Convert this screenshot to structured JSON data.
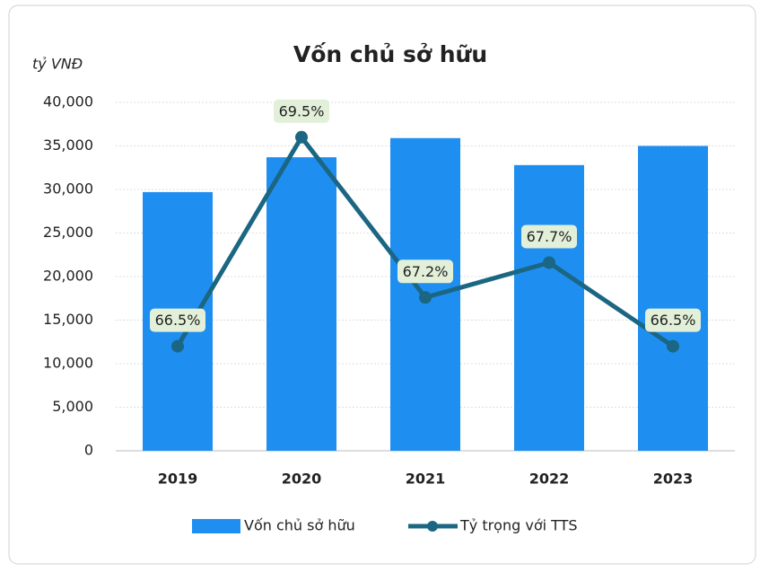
{
  "chart_data": {
    "type": "bar-line",
    "title": "Vốn chủ sở hữu",
    "y_axis_label": "tỷ VNĐ",
    "categories": [
      "2019",
      "2020",
      "2021",
      "2022",
      "2023"
    ],
    "series": [
      {
        "name": "Vốn chủ sở hữu",
        "type": "bar",
        "color": "#1f8ef1",
        "values": [
          29700,
          33700,
          35900,
          32800,
          35000
        ]
      },
      {
        "name": "Tỷ trọng với TTS",
        "type": "line",
        "axis": "y2",
        "color": "#1b6682",
        "values": [
          66.5,
          69.5,
          67.2,
          67.7,
          66.5
        ],
        "value_labels": [
          "66.5%",
          "69.5%",
          "67.2%",
          "67.7%",
          "66.5%"
        ]
      }
    ],
    "ylim": [
      0,
      40000
    ],
    "yticks": [
      0,
      {
        "value": 5000,
        "label": "5,000"
      },
      {
        "value": 10000,
        "label": "10,000"
      },
      {
        "value": 15000,
        "label": "15,000"
      },
      {
        "value": 20000,
        "label": "20,000"
      },
      {
        "value": 25000,
        "label": "25,000"
      },
      {
        "value": 30000,
        "label": "30,000"
      },
      {
        "value": 35000,
        "label": "35,000"
      },
      {
        "value": 40000,
        "label": "40,000"
      }
    ],
    "y2lim": [
      65,
      70
    ],
    "grid": true,
    "legend": "bottom"
  }
}
